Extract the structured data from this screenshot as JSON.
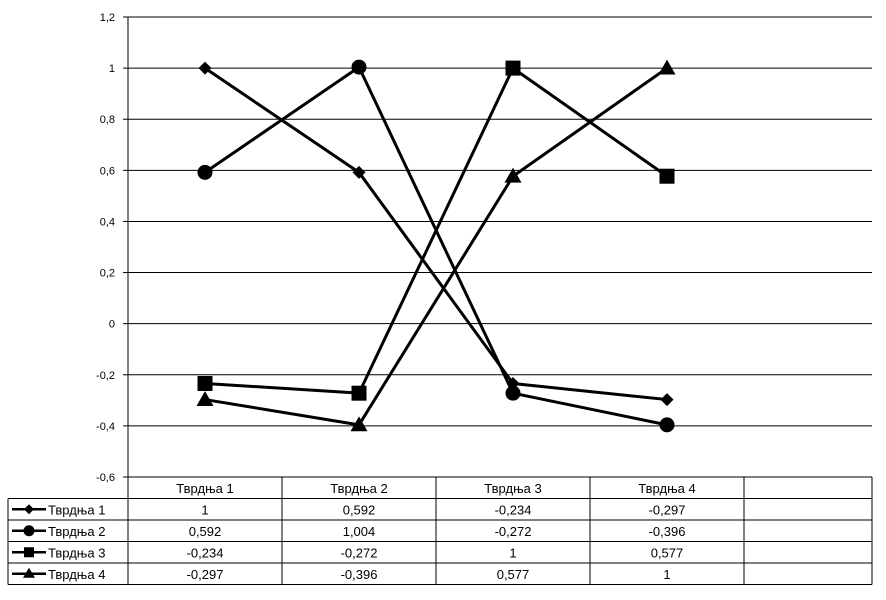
{
  "chart_data": {
    "type": "line",
    "categories": [
      "Тврдња 1",
      "Тврдња 2",
      "Тврдња 3",
      "Тврдња 4"
    ],
    "series": [
      {
        "name": "Тврдња 1",
        "marker": "diamond",
        "values": [
          1,
          0.592,
          -0.234,
          -0.297
        ],
        "labels": [
          "1",
          "0,592",
          "-0,234",
          "-0,297"
        ]
      },
      {
        "name": "Тврдња 2",
        "marker": "circle",
        "values": [
          0.592,
          1.004,
          -0.272,
          -0.396
        ],
        "labels": [
          "0,592",
          "1,004",
          "-0,272",
          "-0,396"
        ]
      },
      {
        "name": "Тврдња 3",
        "marker": "square",
        "values": [
          -0.234,
          -0.272,
          1,
          0.577
        ],
        "labels": [
          "-0,234",
          "-0,272",
          "1",
          "0,577"
        ]
      },
      {
        "name": "Тврдња 4",
        "marker": "triangle",
        "values": [
          -0.297,
          -0.396,
          0.577,
          1
        ],
        "labels": [
          "-0,297",
          "-0,396",
          "0,577",
          "1"
        ]
      }
    ],
    "ylim": [
      -0.6,
      1.2
    ],
    "y_ticks": [
      "1,2",
      "1",
      "0,8",
      "0,6",
      "0,4",
      "0,2",
      "0",
      "-0,2",
      "-0,4",
      "-0,6"
    ],
    "grid": true,
    "legend": "data-table-left",
    "data_table": true,
    "line_color": "#000000"
  }
}
